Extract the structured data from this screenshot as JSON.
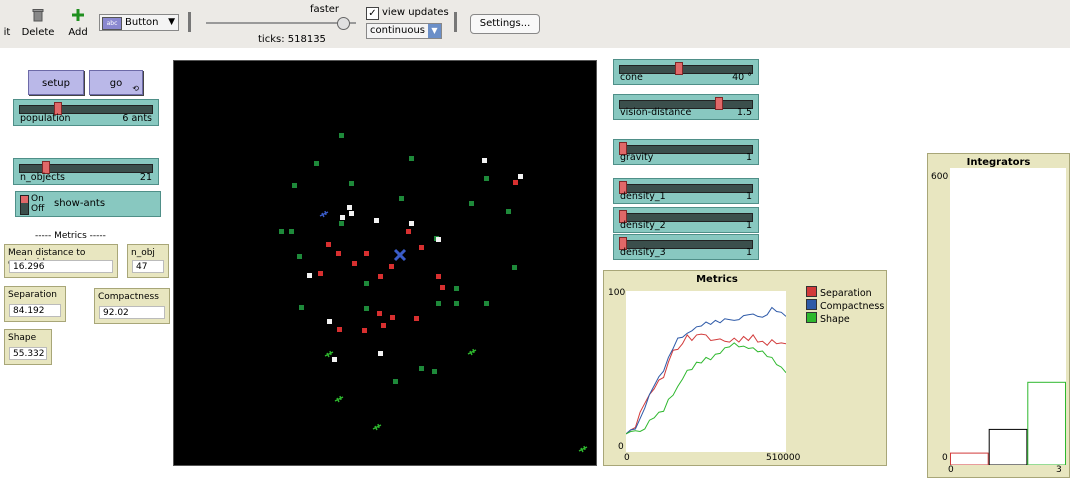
{
  "toolbar": {
    "edit_label": "it",
    "delete_label": "Delete",
    "add_label": "Add",
    "widget_chooser": "Button",
    "speed_label": "faster",
    "ticks_label": "ticks: 518135",
    "view_updates_label": "view updates",
    "view_updates_checked": true,
    "update_mode": "continuous",
    "settings_label": "Settings...",
    "speed_fraction": 0.74
  },
  "buttons": {
    "setup": "setup",
    "go": "go"
  },
  "sliders": [
    {
      "name": "population",
      "value": "6 ants",
      "fraction": 0.27
    },
    {
      "name": "n_objects",
      "value": "21",
      "fraction": 0.18
    },
    {
      "name": "cone",
      "value": "40 °",
      "fraction": 0.44
    },
    {
      "name": "vision-distance",
      "value": "1.5",
      "fraction": 0.75
    },
    {
      "name": "gravity",
      "value": "1",
      "fraction": 0.0
    },
    {
      "name": "density_1",
      "value": "1",
      "fraction": 0.0
    },
    {
      "name": "density_2",
      "value": "1",
      "fraction": 0.0
    },
    {
      "name": "density_3",
      "value": "1",
      "fraction": 0.0
    }
  ],
  "switch": {
    "on_label": "On",
    "off_label": "Off",
    "name": "show-ants"
  },
  "metrics_header": "----- Metrics -----",
  "monitors": {
    "mean_distance": {
      "name": "Mean distance to centroid",
      "value": "16.296"
    },
    "n_obj": {
      "name": "n_obj",
      "value": "47"
    },
    "separation": {
      "name": "Separation",
      "value": "84.192"
    },
    "compactness": {
      "name": "Compactness",
      "value": "92.02"
    },
    "shape": {
      "name": "Shape",
      "value": "55.332"
    }
  },
  "colors": {
    "red": "#d23a3a",
    "blue": "#2e5aa8",
    "green": "#2eb82e",
    "patch_green": "#1e8a3a",
    "patch_red": "#d83030",
    "patch_white": "#f2f2f2",
    "centroid": "#3a5cc8"
  },
  "chart_data": [
    {
      "type": "line",
      "title": "Metrics",
      "xlim": [
        0,
        510000
      ],
      "ylim": [
        0,
        100
      ],
      "x_tick_labels": [
        "0",
        "510000"
      ],
      "y_tick_labels": [
        "0",
        "100"
      ],
      "legend_position": "right",
      "x": [
        0,
        15000,
        30000,
        45000,
        60000,
        75000,
        90000,
        105000,
        120000,
        135000,
        150000,
        165000,
        180000,
        195000,
        210000,
        225000,
        240000,
        255000,
        270000,
        285000,
        300000,
        315000,
        330000,
        345000,
        360000,
        375000,
        390000,
        405000,
        420000,
        435000,
        450000,
        465000,
        480000,
        495000,
        510000
      ],
      "series": [
        {
          "name": "Separation",
          "color": "#d23a3a",
          "values": [
            12,
            13,
            16,
            24,
            31,
            35,
            40,
            44,
            47,
            55,
            64,
            63,
            68,
            72,
            70,
            72,
            74,
            72,
            70,
            69,
            71,
            68,
            69,
            70,
            69,
            71,
            70,
            72,
            69,
            68,
            67,
            69,
            68,
            67,
            68
          ]
        },
        {
          "name": "Compactness",
          "color": "#2e5aa8",
          "values": [
            12,
            13,
            15,
            20,
            28,
            35,
            42,
            46,
            51,
            58,
            65,
            70,
            72,
            73,
            76,
            77,
            79,
            80,
            80,
            81,
            81,
            82,
            83,
            81,
            83,
            84,
            86,
            85,
            85,
            83,
            86,
            89,
            88,
            86,
            85
          ]
        },
        {
          "name": "Shape",
          "color": "#2eb82e",
          "values": [
            12,
            12,
            14,
            12,
            15,
            19,
            22,
            24,
            26,
            32,
            36,
            40,
            46,
            50,
            52,
            55,
            56,
            58,
            58,
            60,
            62,
            64,
            66,
            67,
            66,
            65,
            65,
            64,
            63,
            62,
            60,
            58,
            55,
            52,
            50
          ]
        }
      ]
    },
    {
      "type": "bar",
      "title": "Integrators",
      "xlim": [
        0,
        3
      ],
      "ylim": [
        0,
        600
      ],
      "x_tick_labels": [
        "0",
        "3"
      ],
      "y_tick_labels": [
        "0",
        "600"
      ],
      "categories": [
        "0",
        "1",
        "2"
      ],
      "values": [
        24,
        72,
        167
      ],
      "bar_colors": [
        "#d23a3a",
        "#000000",
        "#2eb82e"
      ]
    }
  ]
}
